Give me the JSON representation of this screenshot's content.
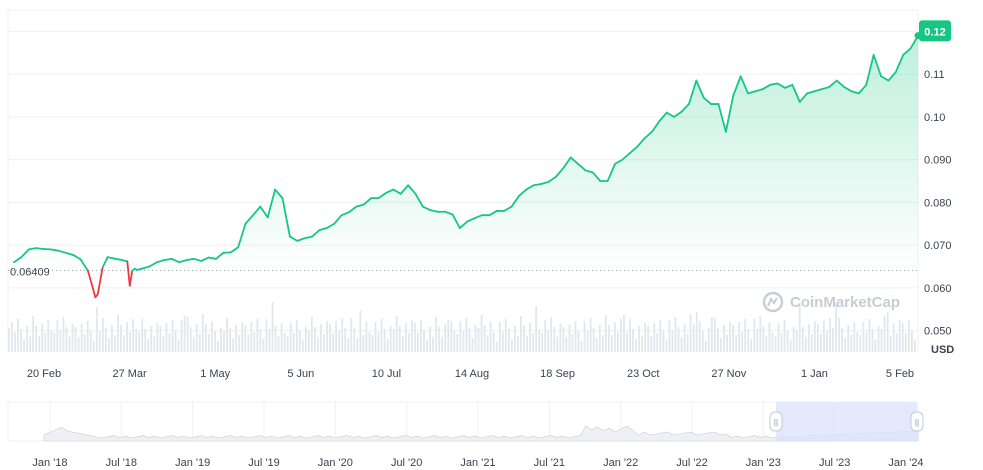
{
  "chart_data": {
    "type": "line",
    "ylabel": "USD",
    "ylim": [
      0.045,
      0.125
    ],
    "y_ticks": [
      "0.050",
      "0.060",
      "0.070",
      "0.080",
      "0.090",
      "0.10",
      "0.11",
      "0.12"
    ],
    "x_tick_labels": [
      "20 Feb",
      "27 Mar",
      "1 May",
      "5 Jun",
      "10 Jul",
      "14 Aug",
      "18 Sep",
      "23 Oct",
      "27 Nov",
      "1 Jan",
      "5 Feb"
    ],
    "start_value": "0.06409",
    "last_value": "0.12",
    "watermark": "CoinMarketCap",
    "colors": {
      "up": "#16c784",
      "down": "#ea3943",
      "grid": "#eef0f3",
      "volume": "#e3e6ec",
      "navigator_fill": "#dbe3fb"
    },
    "series": [
      {
        "x": [
          0,
          3,
          6,
          9,
          12,
          15,
          18,
          21,
          24,
          27,
          30,
          32,
          33,
          34,
          36,
          38,
          41,
          44,
          46,
          47,
          48,
          49,
          50,
          52,
          55,
          58,
          61,
          64,
          67,
          70,
          73,
          76,
          79,
          82,
          85,
          88,
          91,
          94,
          97,
          100,
          103,
          106,
          109,
          112,
          115,
          118,
          121,
          124,
          127,
          130,
          133,
          136,
          139,
          142,
          145,
          148,
          151,
          154,
          157,
          160,
          163,
          166,
          169,
          172,
          175,
          178,
          181,
          184,
          187,
          190,
          193,
          196,
          199,
          202,
          205,
          208,
          211,
          214,
          217,
          220,
          223,
          226,
          229,
          232,
          235,
          238,
          241,
          244,
          247,
          250,
          253,
          256,
          259,
          262,
          265,
          268,
          271,
          274,
          277,
          280,
          283,
          286,
          289,
          292,
          295,
          298,
          301,
          304,
          307,
          310,
          313,
          316,
          319,
          322,
          325,
          328,
          331,
          334,
          337,
          340,
          343,
          346,
          349,
          352,
          355,
          358,
          361,
          364,
          367
        ],
        "values": [
          0.066,
          0.0672,
          0.069,
          0.0693,
          0.0691,
          0.069,
          0.0687,
          0.0682,
          0.0677,
          0.0667,
          0.064,
          0.06,
          0.0578,
          0.0585,
          0.0648,
          0.0672,
          0.0668,
          0.0665,
          0.0662,
          0.0605,
          0.064,
          0.0645,
          0.0642,
          0.0645,
          0.065,
          0.066,
          0.0665,
          0.0668,
          0.066,
          0.0665,
          0.0668,
          0.0663,
          0.0671,
          0.0668,
          0.0682,
          0.0683,
          0.0695,
          0.075,
          0.077,
          0.079,
          0.0765,
          0.083,
          0.081,
          0.072,
          0.071,
          0.0716,
          0.072,
          0.0735,
          0.074,
          0.075,
          0.077,
          0.0777,
          0.079,
          0.0795,
          0.081,
          0.081,
          0.0822,
          0.083,
          0.082,
          0.084,
          0.082,
          0.079,
          0.0782,
          0.0778,
          0.0778,
          0.0772,
          0.074,
          0.0755,
          0.0763,
          0.077,
          0.077,
          0.078,
          0.078,
          0.079,
          0.0815,
          0.083,
          0.084,
          0.0843,
          0.0848,
          0.086,
          0.088,
          0.0905,
          0.089,
          0.0875,
          0.087,
          0.085,
          0.085,
          0.089,
          0.09,
          0.0915,
          0.093,
          0.095,
          0.0965,
          0.099,
          0.101,
          0.1,
          0.1012,
          0.103,
          0.1085,
          0.1045,
          0.103,
          0.103,
          0.0965,
          0.105,
          0.1095,
          0.1055,
          0.106,
          0.1065,
          0.1075,
          0.1078,
          0.1068,
          0.1075,
          0.1035,
          0.1055,
          0.106,
          0.1065,
          0.107,
          0.1085,
          0.107,
          0.106,
          0.1055,
          0.1075,
          0.1145,
          0.1095,
          0.1085,
          0.1105,
          0.1145,
          0.116,
          0.119
        ]
      }
    ],
    "navigator": {
      "x_labels": [
        "Jan '18",
        "Jul '18",
        "Jan '19",
        "Jul '19",
        "Jan '20",
        "Jul '20",
        "Jan '21",
        "Jul '21",
        "Jan '22",
        "Jul '22",
        "Jan '23",
        "Jul '23",
        "Jan '24"
      ],
      "handle_glyph": "||"
    }
  }
}
